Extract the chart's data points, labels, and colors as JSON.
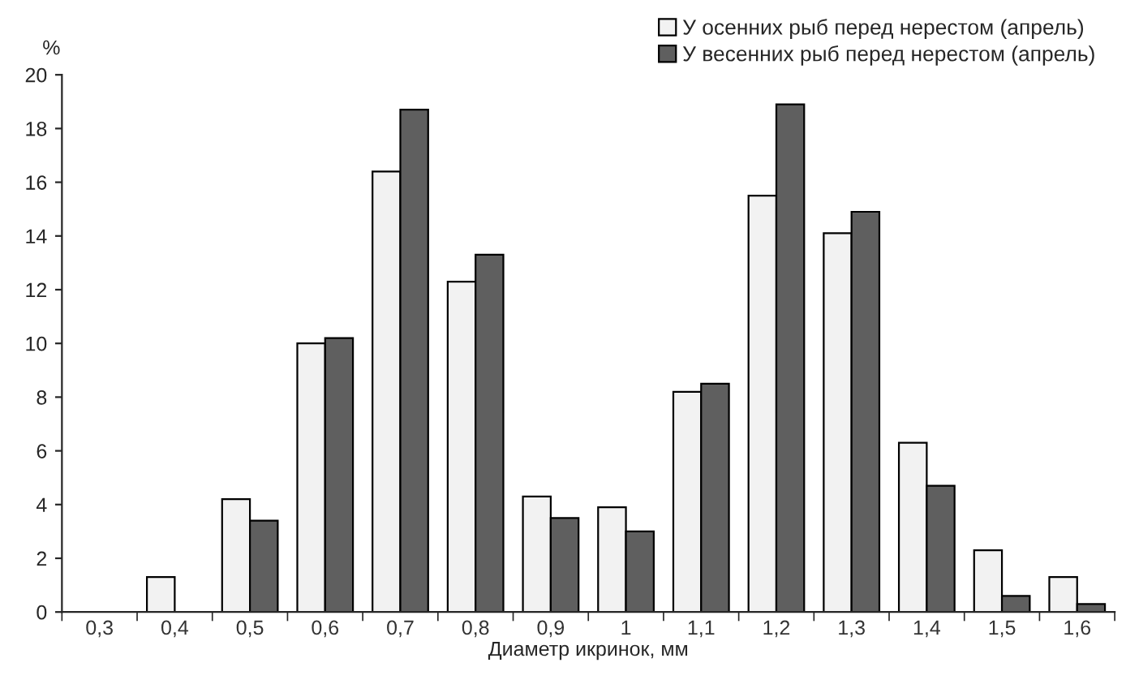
{
  "chart_data": {
    "type": "bar",
    "categories": [
      "0,3",
      "0,4",
      "0,5",
      "0,6",
      "0,7",
      "0,8",
      "0,9",
      "1",
      "1,1",
      "1,2",
      "1,3",
      "1,4",
      "1,5",
      "1,6"
    ],
    "xlabel": "Диаметр икринок, мм",
    "ylabel": "%",
    "series": [
      {
        "name": "У осенних рыб перед нерестом (апрель)",
        "color": "#f2f2f2",
        "values": [
          null,
          1.3,
          4.2,
          10,
          16.4,
          12.3,
          4.3,
          3.9,
          8.2,
          15.5,
          14.1,
          6.3,
          2.3,
          1.3
        ]
      },
      {
        "name": "У весенних рыб перед нерестом (апрель)",
        "color": "#5f5f5f",
        "values": [
          null,
          null,
          3.4,
          10.2,
          18.7,
          13.3,
          3.5,
          3.0,
          8.5,
          18.9,
          14.9,
          4.7,
          0.6,
          0.3
        ]
      }
    ],
    "ylim": [
      0,
      20
    ],
    "yticks": [
      0,
      2,
      4,
      6,
      8,
      10,
      12,
      14,
      16,
      18,
      20
    ],
    "grid": false,
    "legend": "top right"
  }
}
